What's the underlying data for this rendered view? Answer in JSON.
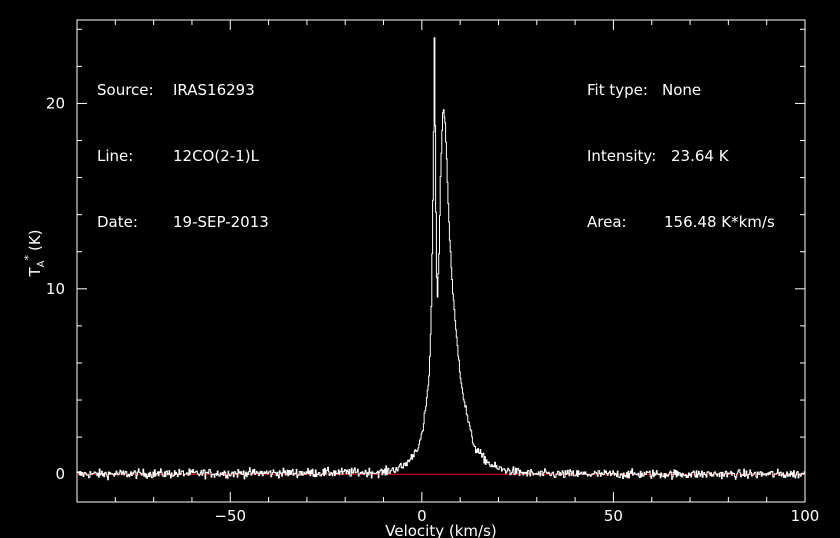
{
  "info_left": {
    "source_label": "Source:",
    "source_value": "IRAS16293",
    "line_label": "Line:",
    "line_value": "12CO(2-1)L",
    "date_label": "Date:",
    "date_value": "19-SEP-2013"
  },
  "info_right": {
    "fit_label": "Fit type:",
    "fit_value": "None",
    "intensity_label": "Intensity:",
    "intensity_value": "23.64 K",
    "area_label": "Area:",
    "area_value": "156.48 K*km/s"
  },
  "chart_data": {
    "type": "line",
    "xlabel": "Velocity (km/s)",
    "ylabel_main": "T",
    "ylabel_sub": "A",
    "ylabel_sup": "*",
    "ylabel_unit": "(K)",
    "xlim": [
      -90,
      100
    ],
    "ylim": [
      -1.5,
      24.5
    ],
    "xticks": [
      -50,
      0,
      50,
      100
    ],
    "xtick_labels": [
      "−50",
      "0",
      "50",
      "100"
    ],
    "yticks": [
      0,
      10,
      20
    ],
    "ytick_labels": [
      "0",
      "10",
      "20"
    ],
    "baseline": 0,
    "noise_rms": 0.12,
    "series": [
      {
        "style": "spectrum",
        "color": "#ffffff",
        "x": [
          -90,
          -10,
          -5,
          -3,
          -1,
          0,
          1,
          2,
          2.5,
          3,
          3.3,
          3.6,
          4,
          4.5,
          5,
          5.5,
          6,
          6.5,
          7,
          8,
          9,
          10,
          11,
          12,
          13,
          14,
          16,
          18,
          20,
          25,
          30,
          100
        ],
        "y": [
          0,
          0.1,
          0.4,
          0.8,
          1.5,
          2.0,
          3.5,
          5.5,
          9.0,
          16.0,
          23.6,
          16.0,
          9.0,
          12.0,
          17.0,
          19.5,
          19.4,
          17.0,
          14.0,
          10.0,
          7.5,
          5.5,
          4.0,
          3.0,
          2.0,
          1.4,
          0.9,
          0.5,
          0.3,
          0.1,
          0.0,
          0.0
        ]
      },
      {
        "style": "baseline",
        "color": "#ff0000",
        "x": [
          -90,
          100
        ],
        "y": [
          0,
          0
        ]
      }
    ]
  }
}
